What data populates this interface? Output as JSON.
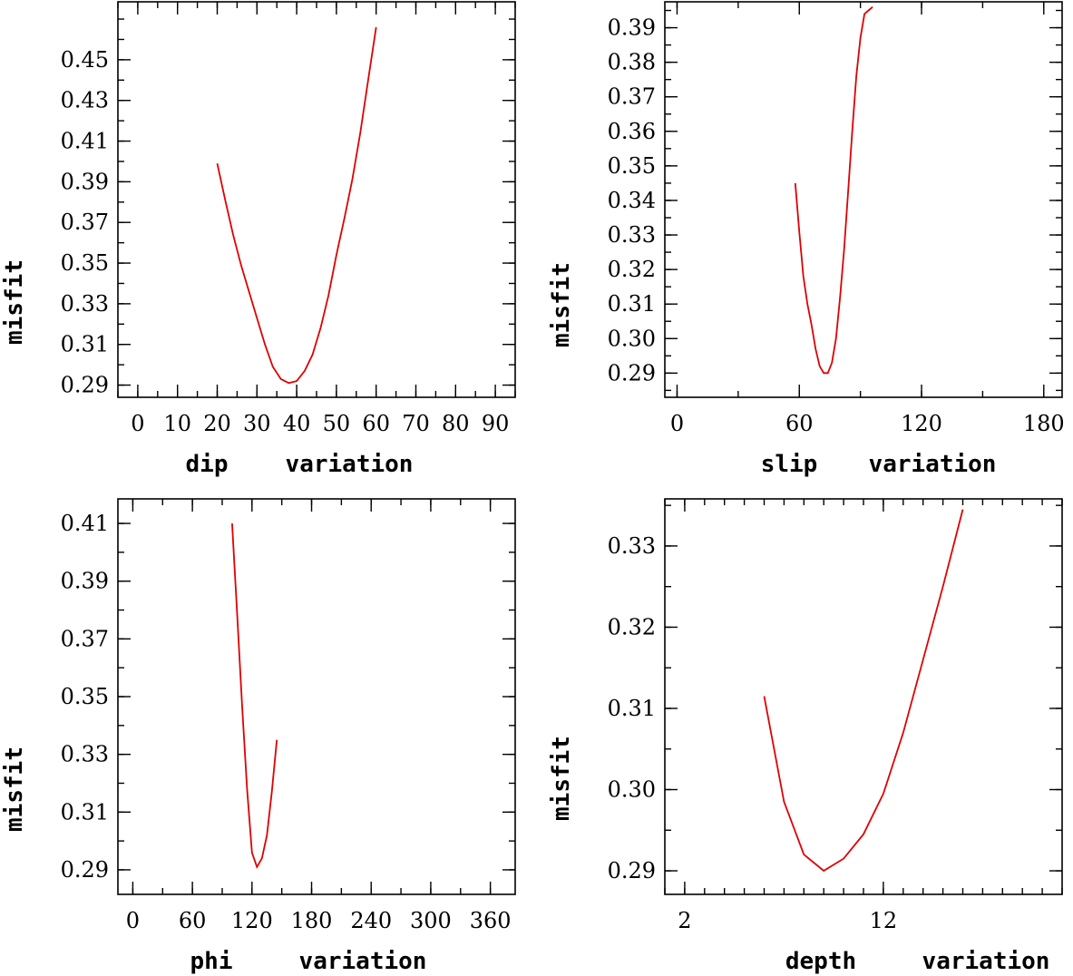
{
  "chart_data": [
    {
      "type": "line",
      "xlabel_parts": [
        "dip",
        "variation"
      ],
      "ylabel": "misfit",
      "xlim": [
        -5,
        95
      ],
      "ylim": [
        0.284,
        0.4785
      ],
      "x_ticks": [
        0,
        10,
        20,
        30,
        40,
        50,
        60,
        70,
        80,
        90
      ],
      "x_tick_labels": [
        "0",
        "10",
        "20",
        "30",
        "40",
        "50",
        "60",
        "70",
        "80",
        "90"
      ],
      "y_ticks": [
        0.29,
        0.31,
        0.33,
        0.35,
        0.37,
        0.39,
        0.41,
        0.43,
        0.45
      ],
      "y_tick_labels": [
        "0.29",
        "0.31",
        "0.33",
        "0.35",
        "0.37",
        "0.39",
        "0.41",
        "0.43",
        "0.45"
      ],
      "x_minor_step": 5,
      "y_minor_step": 0.01,
      "series": [
        {
          "name": "misfit",
          "color": "#e00000",
          "x": [
            20,
            22,
            24,
            26,
            28,
            30,
            32,
            34,
            36,
            38,
            40,
            42,
            44,
            46,
            48,
            50,
            52,
            54,
            56,
            58,
            60
          ],
          "y": [
            0.399,
            0.381,
            0.364,
            0.349,
            0.336,
            0.323,
            0.31,
            0.299,
            0.293,
            0.291,
            0.292,
            0.297,
            0.305,
            0.318,
            0.334,
            0.354,
            0.372,
            0.391,
            0.414,
            0.44,
            0.466
          ]
        }
      ]
    },
    {
      "type": "line",
      "xlabel_parts": [
        "slip",
        "variation"
      ],
      "ylabel": "misfit",
      "xlim": [
        -6,
        189
      ],
      "ylim": [
        0.283,
        0.3975
      ],
      "x_ticks": [
        0,
        60,
        120,
        180
      ],
      "x_tick_labels": [
        "0",
        "60",
        "120",
        "180"
      ],
      "y_ticks": [
        0.29,
        0.3,
        0.31,
        0.32,
        0.33,
        0.34,
        0.35,
        0.36,
        0.37,
        0.38,
        0.39
      ],
      "y_tick_labels": [
        "0.29",
        "0.30",
        "0.31",
        "0.32",
        "0.33",
        "0.34",
        "0.35",
        "0.36",
        "0.37",
        "0.38",
        "0.39"
      ],
      "x_minor_step": 30,
      "y_minor_step": 0.005,
      "series": [
        {
          "name": "misfit",
          "color": "#e00000",
          "x": [
            58,
            60,
            62,
            64,
            66,
            68,
            70,
            72,
            74,
            76,
            78,
            80,
            82,
            84,
            86,
            88,
            90,
            92,
            94,
            96
          ],
          "y": [
            0.345,
            0.331,
            0.318,
            0.31,
            0.304,
            0.297,
            0.292,
            0.29,
            0.29,
            0.293,
            0.3,
            0.312,
            0.326,
            0.343,
            0.36,
            0.376,
            0.387,
            0.394,
            0.395,
            0.396
          ]
        }
      ]
    },
    {
      "type": "line",
      "xlabel_parts": [
        "phi",
        "variation"
      ],
      "ylabel": "misfit",
      "xlim": [
        -15,
        385
      ],
      "ylim": [
        0.2815,
        0.4185
      ],
      "x_ticks": [
        0,
        60,
        120,
        180,
        240,
        300,
        360
      ],
      "x_tick_labels": [
        "0",
        "60",
        "120",
        "180",
        "240",
        "300",
        "360"
      ],
      "y_ticks": [
        0.29,
        0.31,
        0.33,
        0.35,
        0.37,
        0.39,
        0.41
      ],
      "y_tick_labels": [
        "0.29",
        "0.31",
        "0.33",
        "0.35",
        "0.37",
        "0.39",
        "0.41"
      ],
      "x_minor_step": 30,
      "y_minor_step": 0.01,
      "series": [
        {
          "name": "misfit",
          "color": "#e00000",
          "x": [
            100,
            105,
            110,
            115,
            120,
            125,
            130,
            135,
            140,
            145
          ],
          "y": [
            0.41,
            0.379,
            0.347,
            0.318,
            0.296,
            0.291,
            0.294,
            0.302,
            0.317,
            0.335
          ]
        }
      ]
    },
    {
      "type": "line",
      "xlabel_parts": [
        "depth",
        "variation"
      ],
      "ylabel": "misfit",
      "xlim": [
        1.0,
        21.0
      ],
      "ylim": [
        0.2871,
        0.3358
      ],
      "x_ticks": [
        2,
        12
      ],
      "x_tick_labels": [
        "2",
        "12"
      ],
      "y_ticks": [
        0.29,
        0.3,
        0.31,
        0.32,
        0.33
      ],
      "y_tick_labels": [
        "0.29",
        "0.30",
        "0.31",
        "0.32",
        "0.33"
      ],
      "x_minor_step": 1,
      "y_minor_step": 0.005,
      "series": [
        {
          "name": "misfit",
          "color": "#e00000",
          "x": [
            6,
            7,
            8,
            9,
            10,
            11,
            12,
            13,
            14,
            15,
            16
          ],
          "y": [
            0.3115,
            0.2985,
            0.292,
            0.29,
            0.2915,
            0.2945,
            0.2995,
            0.307,
            0.316,
            0.325,
            0.3345
          ]
        }
      ]
    }
  ]
}
